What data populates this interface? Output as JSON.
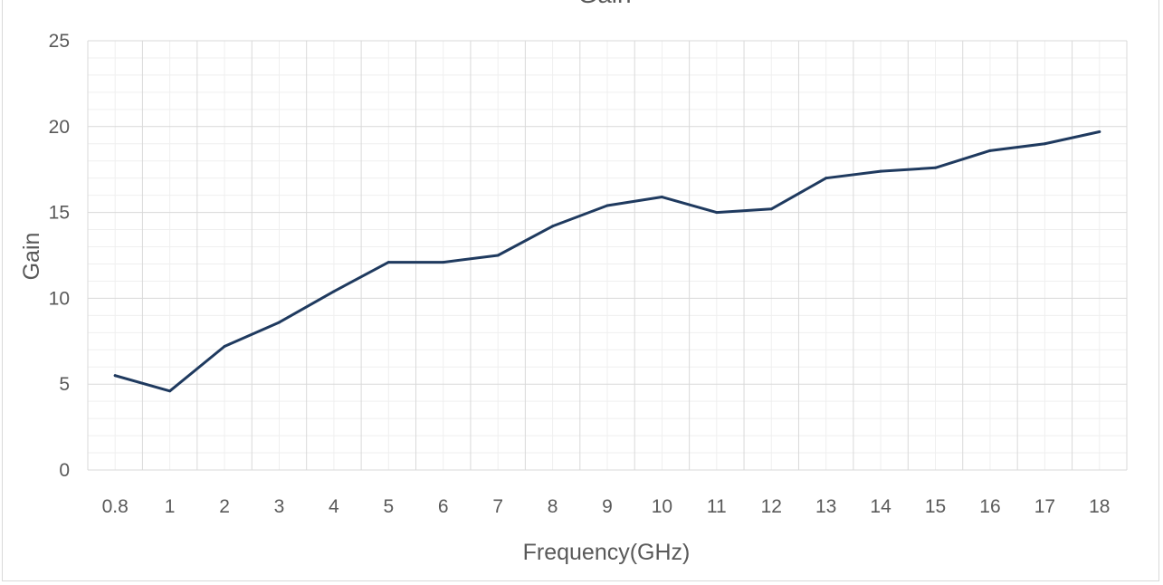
{
  "chart_data": {
    "type": "line",
    "title": "Gain",
    "xlabel": "Frequency(GHz)",
    "ylabel": "Gain",
    "categories": [
      "0.8",
      "1",
      "2",
      "3",
      "4",
      "5",
      "6",
      "7",
      "8",
      "9",
      "10",
      "11",
      "12",
      "13",
      "14",
      "15",
      "16",
      "17",
      "18"
    ],
    "series": [
      {
        "values": [
          5.5,
          4.6,
          7.2,
          8.6,
          10.4,
          12.1,
          12.1,
          12.5,
          14.2,
          15.4,
          15.9,
          15.0,
          15.2,
          17.0,
          17.4,
          17.6,
          18.6,
          19.0,
          19.7
        ]
      }
    ],
    "ylim": [
      0,
      25
    ],
    "yticks": [
      0,
      5,
      10,
      15,
      20,
      25
    ],
    "grid": {
      "major": true,
      "minor": true
    },
    "colors": {
      "line": "#1f3a5f",
      "major_grid": "#d9d9d9",
      "minor_grid": "#efefef",
      "text": "#595959"
    }
  }
}
